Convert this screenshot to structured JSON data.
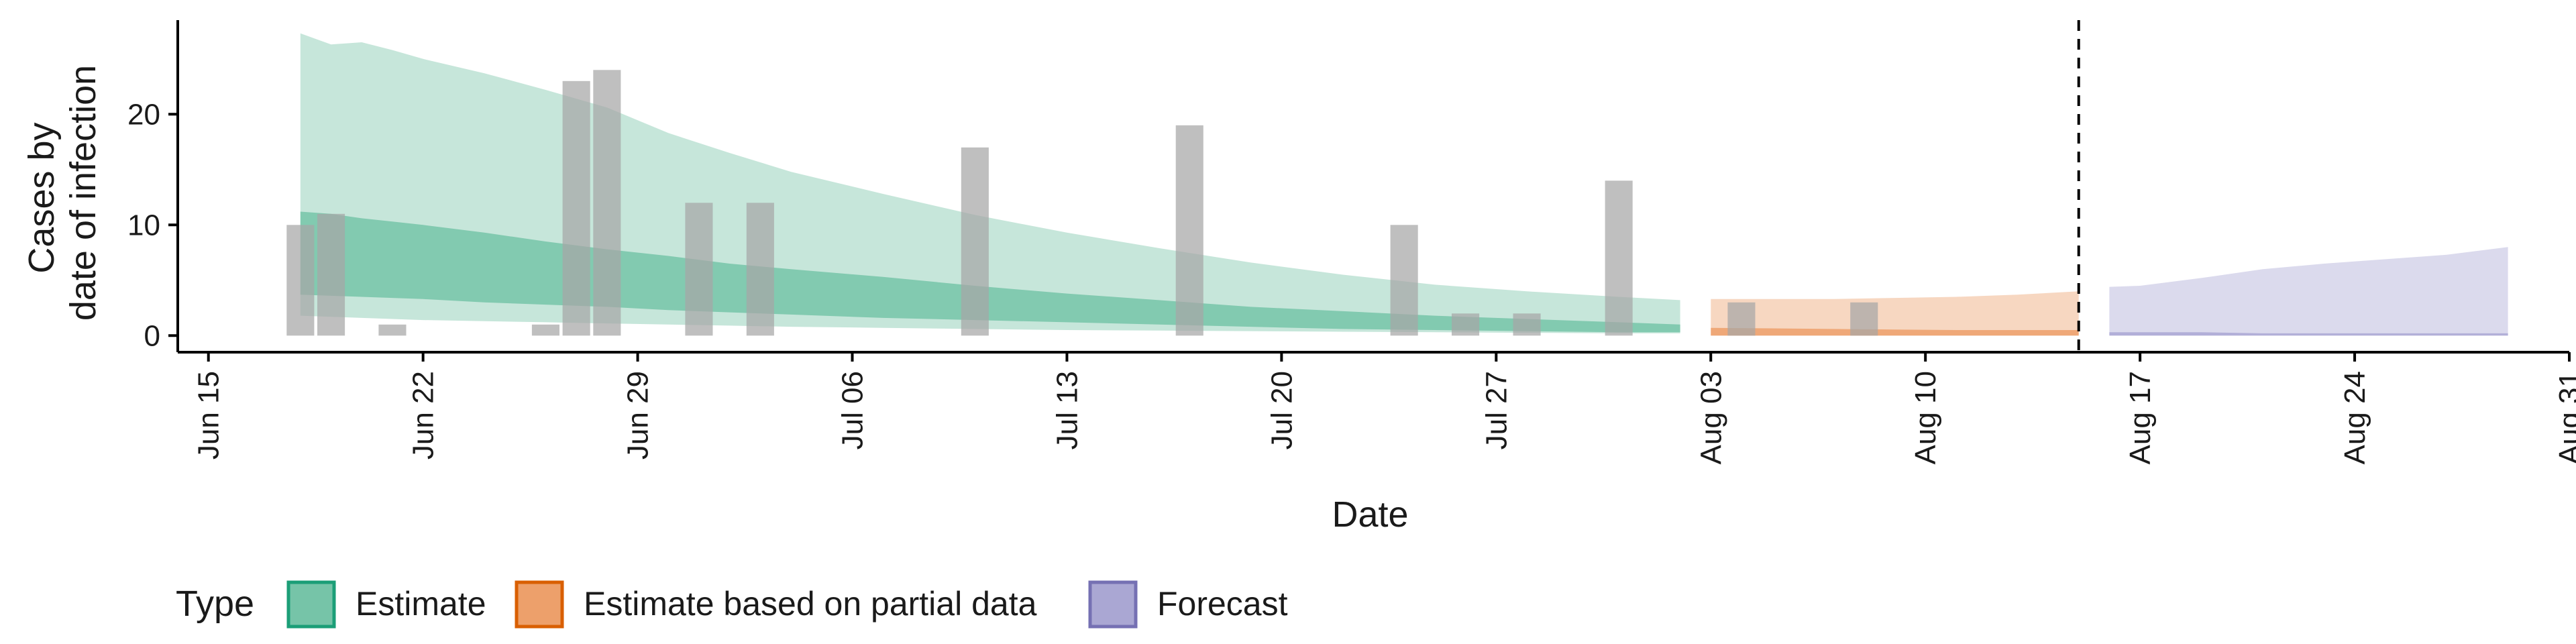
{
  "chart_data": {
    "type": "area",
    "title": "",
    "xlabel": "Date",
    "ylabel": [
      "Cases by",
      "date of infection"
    ],
    "x_range": [
      "2020-06-14",
      "2020-08-31"
    ],
    "ylim": [
      -1.5,
      28.5
    ],
    "y_ticks": [
      0,
      10,
      20
    ],
    "x_ticks": [
      {
        "date": "2020-06-15",
        "label": "Jun 15"
      },
      {
        "date": "2020-06-22",
        "label": "Jun 22"
      },
      {
        "date": "2020-06-29",
        "label": "Jun 29"
      },
      {
        "date": "2020-07-06",
        "label": "Jul 06"
      },
      {
        "date": "2020-07-13",
        "label": "Jul 13"
      },
      {
        "date": "2020-07-20",
        "label": "Jul 20"
      },
      {
        "date": "2020-07-27",
        "label": "Jul 27"
      },
      {
        "date": "2020-08-03",
        "label": "Aug 03"
      },
      {
        "date": "2020-08-10",
        "label": "Aug 10"
      },
      {
        "date": "2020-08-17",
        "label": "Aug 17"
      },
      {
        "date": "2020-08-24",
        "label": "Aug 24"
      },
      {
        "date": "2020-08-31",
        "label": "Aug 31"
      }
    ],
    "forecast_date": "2020-08-15",
    "grid": false,
    "legend": {
      "title": "Type",
      "position": "bottom",
      "entries": [
        {
          "label": "Estimate",
          "fill": "#76c4a8",
          "stroke": "#1b9e77"
        },
        {
          "label": "Estimate based on partial data",
          "fill": "#eda06b",
          "stroke": "#d95f02"
        },
        {
          "label": "Forecast",
          "fill": "#aaa7d3",
          "stroke": "#7570b3"
        }
      ]
    },
    "observed_cases": {
      "color": "#a6a6a6",
      "points": [
        {
          "date": "2020-06-18",
          "value": 10
        },
        {
          "date": "2020-06-19",
          "value": 11
        },
        {
          "date": "2020-06-21",
          "value": 1
        },
        {
          "date": "2020-06-26",
          "value": 1
        },
        {
          "date": "2020-06-27",
          "value": 23
        },
        {
          "date": "2020-06-28",
          "value": 24
        },
        {
          "date": "2020-07-01",
          "value": 12
        },
        {
          "date": "2020-07-03",
          "value": 12
        },
        {
          "date": "2020-07-10",
          "value": 17
        },
        {
          "date": "2020-07-17",
          "value": 19
        },
        {
          "date": "2020-07-24",
          "value": 10
        },
        {
          "date": "2020-07-26",
          "value": 2
        },
        {
          "date": "2020-07-28",
          "value": 2
        },
        {
          "date": "2020-07-31",
          "value": 14
        },
        {
          "date": "2020-08-04",
          "value": 3
        },
        {
          "date": "2020-08-08",
          "value": 3
        }
      ]
    },
    "series": [
      {
        "type": "Estimate",
        "dates": [
          "2020-06-18",
          "2020-06-19",
          "2020-06-20",
          "2020-06-21",
          "2020-06-22",
          "2020-06-24",
          "2020-06-26",
          "2020-06-28",
          "2020-06-30",
          "2020-07-02",
          "2020-07-04",
          "2020-07-07",
          "2020-07-10",
          "2020-07-13",
          "2020-07-16",
          "2020-07-19",
          "2020-07-22",
          "2020-07-25",
          "2020-07-28",
          "2020-07-31",
          "2020-08-02"
        ],
        "outer_upper": [
          27.3,
          26.3,
          26.5,
          25.8,
          25.0,
          23.7,
          22.2,
          20.6,
          18.3,
          16.5,
          14.8,
          12.8,
          10.9,
          9.3,
          7.9,
          6.6,
          5.5,
          4.6,
          4.0,
          3.5,
          3.2
        ],
        "outer_lower": [
          1.8,
          1.7,
          1.6,
          1.5,
          1.4,
          1.3,
          1.2,
          1.1,
          1.0,
          0.9,
          0.8,
          0.7,
          0.6,
          0.5,
          0.45,
          0.4,
          0.35,
          0.3,
          0.25,
          0.2,
          0.2
        ],
        "inner_upper": [
          11.2,
          11.0,
          10.6,
          10.3,
          10.0,
          9.3,
          8.5,
          7.8,
          7.2,
          6.5,
          6.0,
          5.3,
          4.5,
          3.8,
          3.2,
          2.6,
          2.2,
          1.8,
          1.5,
          1.2,
          1.0
        ],
        "inner_lower": [
          3.7,
          3.6,
          3.5,
          3.4,
          3.3,
          3.0,
          2.8,
          2.6,
          2.3,
          2.1,
          1.9,
          1.6,
          1.4,
          1.2,
          1.0,
          0.8,
          0.6,
          0.5,
          0.4,
          0.3,
          0.3
        ]
      },
      {
        "type": "Estimate based on partial data",
        "dates": [
          "2020-08-03",
          "2020-08-05",
          "2020-08-07",
          "2020-08-09",
          "2020-08-11",
          "2020-08-13",
          "2020-08-15"
        ],
        "outer_upper": [
          3.3,
          3.3,
          3.3,
          3.4,
          3.5,
          3.7,
          4.0
        ],
        "outer_lower": [
          0.0,
          0.0,
          0.0,
          0.0,
          0.0,
          0.0,
          0.0
        ],
        "inner_upper": [
          0.7,
          0.65,
          0.6,
          0.55,
          0.5,
          0.5,
          0.5
        ],
        "inner_lower": [
          0.0,
          0.0,
          0.0,
          0.0,
          0.0,
          0.0,
          0.0
        ]
      },
      {
        "type": "Forecast",
        "dates": [
          "2020-08-16",
          "2020-08-17",
          "2020-08-19",
          "2020-08-21",
          "2020-08-23",
          "2020-08-25",
          "2020-08-27",
          "2020-08-29"
        ],
        "outer_upper": [
          4.4,
          4.5,
          5.2,
          6.0,
          6.5,
          6.9,
          7.3,
          8.0
        ],
        "outer_lower": [
          0.0,
          0.0,
          0.0,
          0.0,
          0.0,
          0.0,
          0.0,
          0.0
        ],
        "inner_upper": [
          0.3,
          0.3,
          0.3,
          0.2,
          0.2,
          0.2,
          0.2,
          0.2
        ],
        "inner_lower": [
          0.0,
          0.0,
          0.0,
          0.0,
          0.0,
          0.0,
          0.0,
          0.0
        ]
      }
    ]
  }
}
